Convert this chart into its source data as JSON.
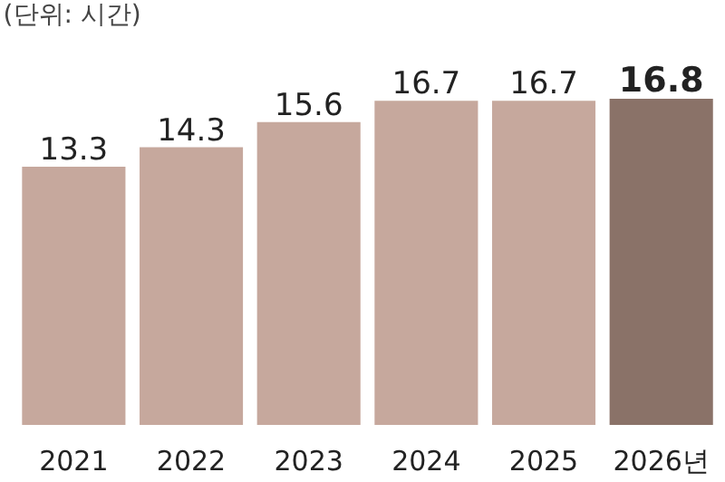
{
  "chart_data": {
    "type": "bar",
    "categories": [
      "2021",
      "2022",
      "2023",
      "2024",
      "2025",
      "2026년"
    ],
    "values": [
      13.3,
      14.3,
      15.6,
      16.7,
      16.7,
      16.8
    ],
    "colors": [
      "#c6a89d",
      "#c6a89d",
      "#c6a89d",
      "#c6a89d",
      "#c6a89d",
      "#8a7268"
    ],
    "data_labels": true,
    "tick_labels": "x",
    "annotations": [
      "(단위: 시간)"
    ]
  }
}
